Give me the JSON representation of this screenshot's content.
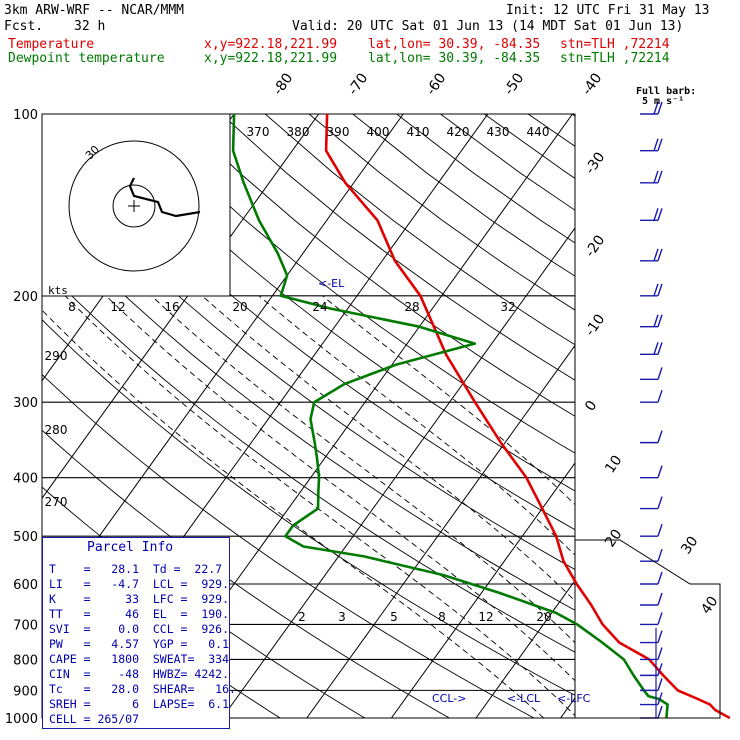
{
  "header": {
    "model": "3km ARW-WRF -- NCAR/MMM",
    "init": "Init: 12 UTC Fri 31 May 13",
    "fcst_label": "Fcst.",
    "fcst_value": "32 h",
    "valid": "Valid: 20 UTC Sat 01 Jun 13 (14 MDT Sat 01 Jun 13)",
    "temperature_label": "Temperature",
    "dewpoint_label": "Dewpoint temperature",
    "xy": "x,y=922.18,221.99",
    "latlon": "lat,lon= 30.39, -84.35",
    "station": "stn=TLH ,72214"
  },
  "barb_legend": {
    "title": "Full barb:",
    "value": "5 m s⁻¹"
  },
  "hodograph": {
    "units": "kts",
    "ring_label": "30"
  },
  "parcel_info": {
    "title": "Parcel Info",
    "rows": [
      "T    =   28.1  Td =  22.7",
      "LI   =   -4.7  LCL =  929.",
      "K    =     33  LFC =  929.",
      "TT   =     46  EL  =  190.",
      "SVI  =    0.0  CCL =  926.",
      "PW   =   4.57  YGP =   0.1",
      "CAPE =   1800  SWEAT=  334",
      "CIN  =    -48  HWBZ= 4242.",
      "Tc   =   28.0  SHEAR=   16.",
      "SREH =      6  LAPSE=  6.1",
      "CELL = 265/07"
    ]
  },
  "chart_data": {
    "type": "line",
    "title": "Skew-T log-P sounding",
    "yaxis": {
      "label": "",
      "scale": "log",
      "ticks": [
        100,
        200,
        300,
        400,
        500,
        600,
        700,
        800,
        900,
        1000
      ]
    },
    "isotherm_labels": [
      "-80",
      "-70",
      "-60",
      "-50",
      "-40",
      "-30",
      "-20",
      "-10",
      "0",
      "10",
      "20",
      "30",
      "40"
    ],
    "theta_labels": [
      "370",
      "380",
      "390",
      "400",
      "410",
      "420",
      "430",
      "440"
    ],
    "theta_labels_lower": [
      "290",
      "280",
      "270"
    ],
    "mixing_ratio_labels": [
      "8",
      "12",
      "16",
      "20",
      "24",
      "28",
      "32"
    ],
    "mixing_ratio_labels_lower": [
      "2",
      "3",
      "5",
      "8",
      "12",
      "20"
    ],
    "annotations": [
      "<-EL",
      "CCL->",
      "<-LCL",
      "<-LFC"
    ],
    "series": [
      {
        "name": "Temperature",
        "color": "#e00000",
        "points": [
          [
            30,
            1000
          ],
          [
            27.6,
            970
          ],
          [
            26.5,
            950
          ],
          [
            24.6,
            930
          ],
          [
            21.5,
            900
          ],
          [
            18.5,
            850
          ],
          [
            15.5,
            800
          ],
          [
            10.5,
            750
          ],
          [
            7.0,
            700
          ],
          [
            4.0,
            650
          ],
          [
            0.5,
            600
          ],
          [
            -3.0,
            550
          ],
          [
            -6.0,
            500
          ],
          [
            -10.0,
            450
          ],
          [
            -14.5,
            400
          ],
          [
            -20.5,
            350
          ],
          [
            -27.0,
            300
          ],
          [
            -34.5,
            250
          ],
          [
            -42.5,
            200
          ],
          [
            -48.5,
            175
          ],
          [
            -54.0,
            150
          ],
          [
            -61.0,
            130
          ],
          [
            -66.0,
            115
          ],
          [
            -69.0,
            100
          ]
        ]
      },
      {
        "name": "Dewpoint temperature",
        "color": "#007a00",
        "points": [
          [
            22.5,
            1000
          ],
          [
            21.5,
            950
          ],
          [
            20.0,
            930
          ],
          [
            18.5,
            920
          ],
          [
            17.5,
            900
          ],
          [
            15.0,
            850
          ],
          [
            12.5,
            800
          ],
          [
            8.5,
            750
          ],
          [
            4.0,
            700
          ],
          [
            0.5,
            670
          ],
          [
            -8.0,
            620
          ],
          [
            -16.0,
            580
          ],
          [
            -27.0,
            540
          ],
          [
            -35.0,
            520
          ],
          [
            -38.0,
            500
          ],
          [
            -38.0,
            480
          ],
          [
            -36.5,
            450
          ],
          [
            -38.0,
            420
          ],
          [
            -39.0,
            400
          ],
          [
            -41.0,
            370
          ],
          [
            -42.5,
            350
          ],
          [
            -45.0,
            320
          ],
          [
            -46.0,
            300
          ],
          [
            -44.0,
            280
          ],
          [
            -39.5,
            260
          ],
          [
            -32.0,
            240
          ],
          [
            -40.0,
            225
          ],
          [
            -52.0,
            210
          ],
          [
            -59.0,
            200
          ],
          [
            -60.0,
            185
          ],
          [
            -63.0,
            170
          ],
          [
            -68.0,
            150
          ],
          [
            -73.0,
            130
          ],
          [
            -77.0,
            115
          ],
          [
            -80.0,
            100
          ]
        ]
      }
    ],
    "wind_barbs_m_s": [
      [
        100,
        12
      ],
      [
        115,
        11
      ],
      [
        130,
        10
      ],
      [
        150,
        10
      ],
      [
        175,
        9
      ],
      [
        200,
        9
      ],
      [
        225,
        8
      ],
      [
        250,
        8
      ],
      [
        275,
        7
      ],
      [
        300,
        7
      ],
      [
        350,
        6
      ],
      [
        400,
        5
      ],
      [
        450,
        5
      ],
      [
        500,
        6
      ],
      [
        550,
        7
      ],
      [
        600,
        6
      ],
      [
        650,
        6
      ],
      [
        700,
        7
      ],
      [
        750,
        6
      ],
      [
        800,
        5
      ],
      [
        850,
        4
      ],
      [
        900,
        4
      ],
      [
        950,
        3
      ],
      [
        1000,
        2
      ]
    ],
    "hodograph_trace": [
      [
        0,
        0
      ],
      [
        1,
        -1
      ],
      [
        2,
        -2
      ],
      [
        2,
        -3
      ],
      [
        4,
        -4
      ],
      [
        6,
        -6
      ],
      [
        9,
        -5
      ],
      [
        11,
        -5
      ]
    ]
  }
}
